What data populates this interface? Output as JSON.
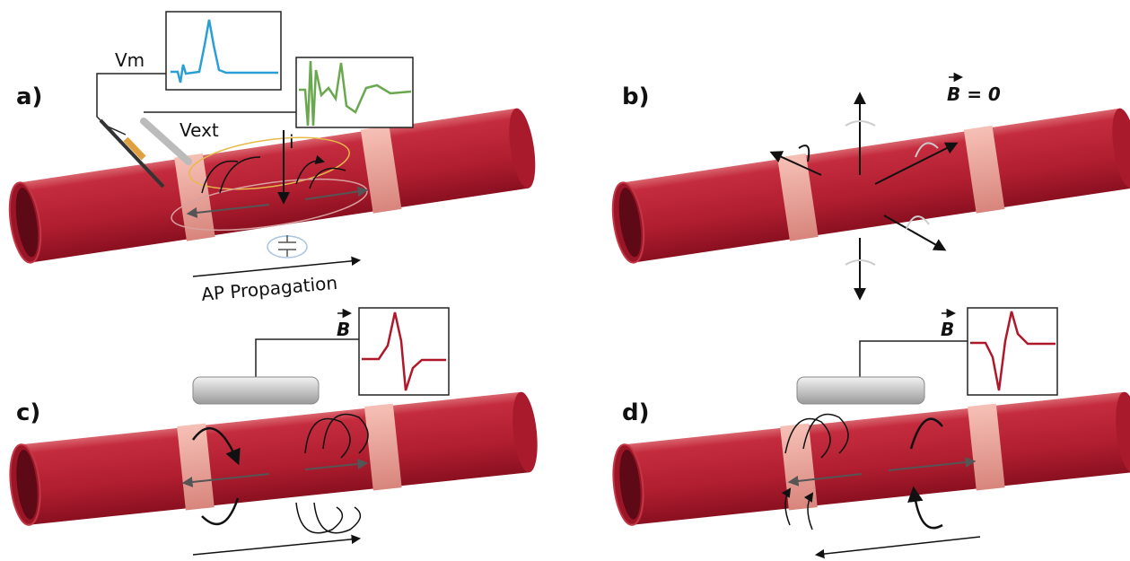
{
  "panels": [
    {
      "label": "a)",
      "vm": "Vm",
      "vext": "Vext",
      "current": "i",
      "caption": "AP Propagation"
    },
    {
      "label": "b)",
      "field": "B = 0"
    },
    {
      "label": "c)",
      "field": "B"
    },
    {
      "label": "d)",
      "field": "B"
    }
  ]
}
